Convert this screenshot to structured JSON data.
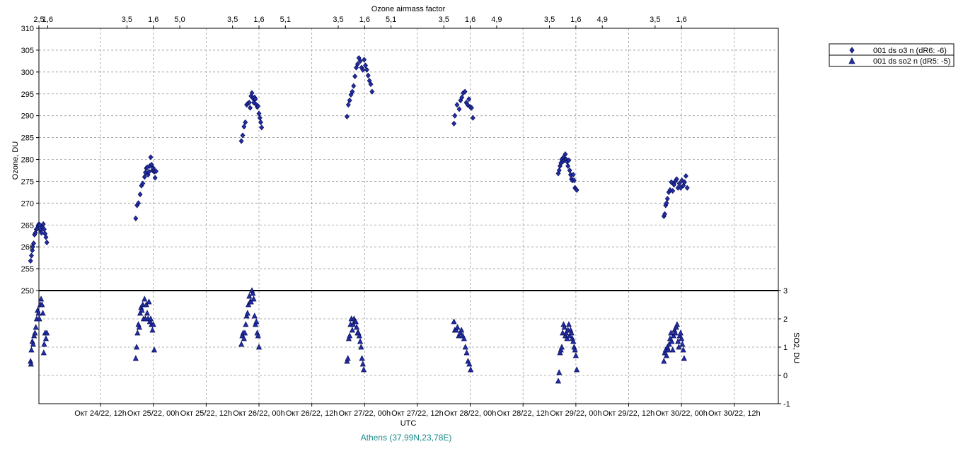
{
  "chart_data": {
    "type": "scatter",
    "top_axis": {
      "title": "Ozone airmass factor",
      "labels": [
        {
          "day": 0,
          "ticks": [
            "2,5",
            "1,6"
          ]
        },
        {
          "day": 1,
          "ticks": [
            "3,5",
            "1,6",
            "5,0"
          ]
        },
        {
          "day": 2,
          "ticks": [
            "3,5",
            "1,6",
            "5,1"
          ]
        },
        {
          "day": 3,
          "ticks": [
            "3,5",
            "1,6",
            "5,1"
          ]
        },
        {
          "day": 4,
          "ticks": [
            "3,5",
            "1,6",
            "4,9"
          ]
        },
        {
          "day": 5,
          "ticks": [
            "3,5",
            "1,6",
            "4,9"
          ]
        },
        {
          "day": 6,
          "ticks": [
            "3,5",
            "1,6"
          ]
        }
      ]
    },
    "x_axis": {
      "title": "UTC",
      "tick_labels": [
        "Окт 24/22, 12h",
        "Окт 25/22, 00h",
        "Окт 25/22, 12h",
        "Окт 26/22, 00h",
        "Окт 26/22, 12h",
        "Окт 27/22, 00h",
        "Окт 27/22, 12h",
        "Окт 28/22, 00h",
        "Окт 28/22, 12h",
        "Окт 29/22, 00h",
        "Окт 29/22, 12h",
        "Окт 30/22, 00h",
        "Окт 30/22, 12h"
      ]
    },
    "y_axis_left": {
      "title": "Ozone, DU",
      "min": 250,
      "max": 310,
      "tick_labels": [
        "250",
        "255",
        "260",
        "265",
        "270",
        "275",
        "280",
        "285",
        "290",
        "295",
        "300",
        "305",
        "310"
      ]
    },
    "y_axis_right": {
      "title": "SO2, DU",
      "min": -1,
      "max": 3,
      "tick_labels": [
        "-1",
        "0",
        "1",
        "2",
        "3"
      ]
    },
    "grid": true,
    "legend_position": "right",
    "station": "Athens (37,99N,23,78E)",
    "colors": {
      "marker_fill": "#1f2fa8",
      "marker_stroke": "#0a0a50",
      "grid": "#9a9a9a",
      "station_text": "#1a8a8a"
    },
    "series": [
      {
        "name": "001 ds o3  n (dR6: -6)",
        "marker": "diamond",
        "points": [
          [
            8.1,
            256.8
          ],
          [
            8.3,
            258.0
          ],
          [
            8.5,
            259.2
          ],
          [
            8.6,
            260.0
          ],
          [
            8.8,
            260.8
          ],
          [
            9.0,
            262.8
          ],
          [
            9.2,
            263.2
          ],
          [
            9.4,
            264.0
          ],
          [
            9.6,
            264.2
          ],
          [
            9.8,
            264.8
          ],
          [
            10.0,
            265.2
          ],
          [
            10.2,
            265.0
          ],
          [
            10.4,
            263.8
          ],
          [
            10.6,
            263.2
          ],
          [
            10.8,
            264.5
          ],
          [
            11.0,
            265.2
          ],
          [
            11.2,
            264.0
          ],
          [
            11.4,
            263.0
          ],
          [
            11.6,
            262.2
          ],
          [
            11.8,
            261.0
          ],
          [
            32.0,
            266.5
          ],
          [
            32.3,
            269.5
          ],
          [
            32.6,
            270.0
          ],
          [
            33.0,
            272.0
          ],
          [
            33.3,
            274.0
          ],
          [
            33.6,
            274.5
          ],
          [
            34.0,
            276.0
          ],
          [
            34.2,
            277.0
          ],
          [
            34.4,
            278.0
          ],
          [
            34.6,
            278.2
          ],
          [
            34.8,
            276.5
          ],
          [
            35.0,
            277.2
          ],
          [
            35.2,
            278.5
          ],
          [
            35.4,
            280.5
          ],
          [
            35.6,
            278.8
          ],
          [
            35.8,
            277.5
          ],
          [
            36.0,
            278.0
          ],
          [
            36.2,
            277.2
          ],
          [
            36.4,
            275.8
          ],
          [
            36.6,
            277.3
          ],
          [
            56.0,
            284.2
          ],
          [
            56.3,
            285.5
          ],
          [
            56.6,
            287.5
          ],
          [
            56.9,
            288.5
          ],
          [
            57.2,
            292.5
          ],
          [
            57.5,
            292.8
          ],
          [
            57.8,
            293.0
          ],
          [
            58.0,
            291.8
          ],
          [
            58.2,
            294.5
          ],
          [
            58.4,
            295.2
          ],
          [
            58.6,
            294.0
          ],
          [
            58.8,
            293.0
          ],
          [
            59.0,
            294.2
          ],
          [
            59.2,
            293.8
          ],
          [
            59.4,
            292.5
          ],
          [
            59.6,
            292.0
          ],
          [
            59.8,
            292.2
          ],
          [
            60.0,
            290.5
          ],
          [
            60.2,
            289.5
          ],
          [
            60.4,
            288.5
          ],
          [
            60.6,
            287.3
          ],
          [
            80.0,
            289.8
          ],
          [
            80.3,
            292.5
          ],
          [
            80.6,
            293.5
          ],
          [
            80.9,
            294.8
          ],
          [
            81.2,
            295.5
          ],
          [
            81.5,
            296.8
          ],
          [
            81.8,
            299.0
          ],
          [
            82.1,
            301.0
          ],
          [
            82.4,
            301.8
          ],
          [
            82.7,
            303.2
          ],
          [
            83.0,
            302.5
          ],
          [
            83.3,
            301.0
          ],
          [
            83.6,
            300.5
          ],
          [
            83.9,
            302.8
          ],
          [
            84.2,
            301.5
          ],
          [
            84.5,
            300.5
          ],
          [
            84.8,
            299.2
          ],
          [
            85.1,
            298.0
          ],
          [
            85.4,
            297.2
          ],
          [
            85.7,
            295.5
          ],
          [
            104.3,
            288.2
          ],
          [
            104.5,
            290.0
          ],
          [
            105.0,
            292.5
          ],
          [
            105.5,
            291.5
          ],
          [
            105.8,
            293.5
          ],
          [
            106.1,
            294.2
          ],
          [
            106.4,
            295.2
          ],
          [
            106.8,
            295.5
          ],
          [
            107.1,
            293.0
          ],
          [
            107.4,
            292.5
          ],
          [
            107.7,
            293.8
          ],
          [
            108.0,
            292.0
          ],
          [
            108.3,
            291.8
          ],
          [
            108.6,
            289.5
          ],
          [
            128.0,
            276.8
          ],
          [
            128.2,
            277.5
          ],
          [
            128.4,
            278.5
          ],
          [
            128.6,
            279.2
          ],
          [
            128.8,
            280.0
          ],
          [
            129.0,
            279.5
          ],
          [
            129.2,
            280.5
          ],
          [
            129.4,
            279.8
          ],
          [
            129.6,
            281.2
          ],
          [
            129.8,
            280.0
          ],
          [
            130.0,
            279.5
          ],
          [
            130.2,
            278.5
          ],
          [
            130.4,
            279.8
          ],
          [
            130.6,
            277.5
          ],
          [
            130.8,
            276.5
          ],
          [
            131.0,
            275.5
          ],
          [
            131.2,
            275.2
          ],
          [
            131.4,
            276.5
          ],
          [
            131.6,
            275.2
          ],
          [
            131.8,
            273.5
          ],
          [
            132.0,
            273.2
          ],
          [
            132.2,
            273.0
          ],
          [
            152.0,
            267.0
          ],
          [
            152.2,
            267.5
          ],
          [
            152.4,
            269.5
          ],
          [
            152.6,
            270.0
          ],
          [
            152.8,
            271.0
          ],
          [
            153.1,
            272.5
          ],
          [
            153.4,
            273.0
          ],
          [
            153.7,
            274.8
          ],
          [
            154.0,
            272.8
          ],
          [
            154.3,
            274.2
          ],
          [
            154.6,
            275.0
          ],
          [
            154.9,
            275.5
          ],
          [
            155.2,
            273.5
          ],
          [
            155.5,
            274.5
          ],
          [
            155.8,
            273.5
          ],
          [
            156.1,
            275.2
          ],
          [
            156.4,
            274.0
          ],
          [
            156.7,
            274.8
          ],
          [
            157.0,
            276.2
          ],
          [
            157.3,
            273.5
          ]
        ]
      },
      {
        "name": "001 ds so2 n (dR5: -5)",
        "marker": "triangle",
        "points": [
          [
            8.1,
            0.5
          ],
          [
            8.2,
            0.4
          ],
          [
            8.3,
            0.9
          ],
          [
            8.5,
            1.2
          ],
          [
            8.7,
            1.1
          ],
          [
            8.9,
            1.4
          ],
          [
            9.1,
            1.5
          ],
          [
            9.3,
            1.7
          ],
          [
            9.5,
            2.0
          ],
          [
            9.7,
            2.3
          ],
          [
            9.9,
            2.2
          ],
          [
            10.1,
            2.0
          ],
          [
            10.3,
            2.5
          ],
          [
            10.5,
            2.7
          ],
          [
            10.7,
            2.5
          ],
          [
            10.9,
            2.2
          ],
          [
            11.1,
            0.8
          ],
          [
            11.2,
            1.1
          ],
          [
            11.4,
            1.5
          ],
          [
            11.6,
            1.3
          ],
          [
            11.8,
            1.5
          ],
          [
            32.0,
            0.6
          ],
          [
            32.2,
            1.0
          ],
          [
            32.4,
            1.5
          ],
          [
            32.6,
            1.8
          ],
          [
            32.8,
            1.7
          ],
          [
            33.0,
            2.2
          ],
          [
            33.2,
            2.4
          ],
          [
            33.4,
            2.3
          ],
          [
            33.6,
            2.5
          ],
          [
            33.8,
            2.0
          ],
          [
            34.0,
            2.7
          ],
          [
            34.2,
            2.0
          ],
          [
            34.4,
            2.5
          ],
          [
            34.6,
            2.2
          ],
          [
            34.8,
            2.0
          ],
          [
            35.0,
            2.6
          ],
          [
            35.2,
            1.9
          ],
          [
            35.4,
            2.0
          ],
          [
            35.6,
            1.8
          ],
          [
            35.8,
            1.6
          ],
          [
            36.0,
            1.8
          ],
          [
            36.2,
            0.9
          ],
          [
            56.0,
            1.1
          ],
          [
            56.2,
            1.4
          ],
          [
            56.4,
            1.5
          ],
          [
            56.6,
            1.3
          ],
          [
            56.8,
            1.5
          ],
          [
            57.0,
            1.8
          ],
          [
            57.2,
            2.1
          ],
          [
            57.4,
            2.2
          ],
          [
            57.6,
            2.5
          ],
          [
            57.8,
            2.8
          ],
          [
            58.0,
            2.6
          ],
          [
            58.2,
            2.6
          ],
          [
            58.4,
            3.0
          ],
          [
            58.6,
            2.9
          ],
          [
            58.8,
            2.7
          ],
          [
            59.0,
            2.1
          ],
          [
            59.2,
            1.8
          ],
          [
            59.4,
            1.9
          ],
          [
            59.6,
            1.5
          ],
          [
            59.8,
            1.4
          ],
          [
            60.0,
            1.0
          ],
          [
            80.0,
            0.5
          ],
          [
            80.2,
            0.6
          ],
          [
            80.4,
            1.3
          ],
          [
            80.6,
            1.4
          ],
          [
            80.8,
            1.8
          ],
          [
            81.0,
            2.0
          ],
          [
            81.2,
            1.6
          ],
          [
            81.4,
            1.8
          ],
          [
            81.6,
            2.0
          ],
          [
            81.8,
            1.9
          ],
          [
            82.0,
            1.9
          ],
          [
            82.2,
            1.7
          ],
          [
            82.4,
            1.5
          ],
          [
            82.6,
            1.5
          ],
          [
            82.8,
            1.4
          ],
          [
            83.0,
            1.2
          ],
          [
            83.2,
            1.0
          ],
          [
            83.4,
            0.6
          ],
          [
            83.6,
            0.4
          ],
          [
            83.8,
            0.2
          ],
          [
            104.3,
            1.9
          ],
          [
            104.5,
            1.6
          ],
          [
            104.8,
            1.6
          ],
          [
            105.1,
            1.7
          ],
          [
            105.4,
            1.4
          ],
          [
            105.7,
            1.5
          ],
          [
            106.0,
            1.6
          ],
          [
            106.3,
            1.4
          ],
          [
            106.6,
            1.3
          ],
          [
            106.9,
            1.0
          ],
          [
            107.2,
            0.8
          ],
          [
            107.5,
            0.5
          ],
          [
            107.8,
            0.4
          ],
          [
            108.1,
            0.2
          ],
          [
            128.0,
            -0.2
          ],
          [
            128.2,
            0.1
          ],
          [
            128.4,
            0.8
          ],
          [
            128.6,
            0.9
          ],
          [
            128.8,
            1.0
          ],
          [
            129.0,
            1.5
          ],
          [
            129.2,
            1.8
          ],
          [
            129.4,
            1.7
          ],
          [
            129.6,
            1.4
          ],
          [
            129.8,
            1.5
          ],
          [
            130.0,
            1.3
          ],
          [
            130.2,
            1.6
          ],
          [
            130.4,
            1.8
          ],
          [
            130.6,
            1.4
          ],
          [
            130.8,
            1.6
          ],
          [
            131.0,
            1.5
          ],
          [
            131.2,
            1.3
          ],
          [
            131.4,
            1.2
          ],
          [
            131.6,
            1.0
          ],
          [
            131.8,
            0.9
          ],
          [
            132.0,
            0.7
          ],
          [
            132.2,
            0.2
          ],
          [
            152.0,
            0.5
          ],
          [
            152.2,
            0.8
          ],
          [
            152.4,
            0.9
          ],
          [
            152.6,
            0.7
          ],
          [
            152.8,
            1.0
          ],
          [
            153.0,
            0.9
          ],
          [
            153.2,
            1.1
          ],
          [
            153.4,
            1.3
          ],
          [
            153.6,
            1.5
          ],
          [
            153.8,
            1.2
          ],
          [
            154.0,
            0.9
          ],
          [
            154.2,
            1.4
          ],
          [
            154.4,
            1.6
          ],
          [
            154.6,
            1.5
          ],
          [
            154.8,
            1.7
          ],
          [
            155.0,
            1.8
          ],
          [
            155.2,
            1.2
          ],
          [
            155.4,
            1.0
          ],
          [
            155.6,
            1.4
          ],
          [
            155.8,
            1.5
          ],
          [
            156.0,
            1.3
          ],
          [
            156.2,
            1.1
          ],
          [
            156.4,
            0.9
          ],
          [
            156.6,
            0.6
          ]
        ]
      }
    ]
  }
}
